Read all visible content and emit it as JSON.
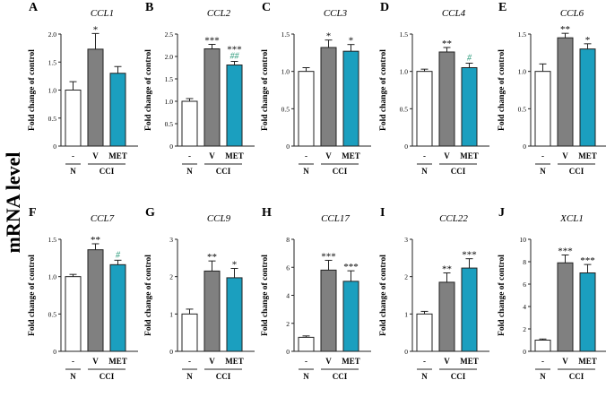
{
  "figure": {
    "y_axis_title": "mRNA level",
    "panel_ylabel": "Fold change of control",
    "colors": {
      "N": "#ffffff",
      "V": "#808080",
      "MET": "#1b9fbf",
      "edge": "#222222",
      "hash": "#2a9a7a"
    }
  },
  "chart_data": [
    {
      "type": "bar",
      "letter": "A",
      "title": "CCL1",
      "categories": [
        "-",
        "V",
        "MET"
      ],
      "groups": [
        "N",
        "CCI"
      ],
      "values": [
        1.0,
        1.73,
        1.3
      ],
      "errors": [
        0.15,
        0.28,
        0.12
      ],
      "ylim": [
        0,
        2
      ],
      "yticks": [
        "0",
        "0.5",
        "1.0",
        "1.5",
        "2.0"
      ],
      "annotations": [
        "",
        "*",
        ""
      ],
      "ylabel": "Fold change of control"
    },
    {
      "type": "bar",
      "letter": "B",
      "title": "CCL2",
      "categories": [
        "-",
        "V",
        "MET"
      ],
      "groups": [
        "N",
        "CCI"
      ],
      "values": [
        1.0,
        2.17,
        1.81
      ],
      "errors": [
        0.06,
        0.1,
        0.08
      ],
      "ylim": [
        0,
        2.5
      ],
      "yticks": [
        "0",
        "0.5",
        "1.0",
        "1.5",
        "2.0",
        "2.5"
      ],
      "annotations": [
        "",
        "***",
        "***"
      ],
      "hash": [
        "",
        "",
        "##"
      ],
      "ylabel": "Fold change of control"
    },
    {
      "type": "bar",
      "letter": "C",
      "title": "CCL3",
      "categories": [
        "-",
        "V",
        "MET"
      ],
      "groups": [
        "N",
        "CCI"
      ],
      "values": [
        1.0,
        1.32,
        1.27
      ],
      "errors": [
        0.05,
        0.1,
        0.09
      ],
      "ylim": [
        0,
        1.5
      ],
      "yticks": [
        "0",
        "0.5",
        "1.0",
        "1.5"
      ],
      "annotations": [
        "",
        "*",
        "*"
      ],
      "ylabel": "Fold change of control"
    },
    {
      "type": "bar",
      "letter": "D",
      "title": "CCL4",
      "categories": [
        "-",
        "V",
        "MET"
      ],
      "groups": [
        "N",
        "CCI"
      ],
      "values": [
        1.0,
        1.26,
        1.05
      ],
      "errors": [
        0.03,
        0.06,
        0.06
      ],
      "ylim": [
        0,
        1.5
      ],
      "yticks": [
        "0",
        "0.5",
        "1.0",
        "1.5"
      ],
      "annotations": [
        "",
        "**",
        ""
      ],
      "hash": [
        "",
        "",
        "#"
      ],
      "ylabel": "Fold change of control"
    },
    {
      "type": "bar",
      "letter": "E",
      "title": "CCL6",
      "categories": [
        "-",
        "V",
        "MET"
      ],
      "groups": [
        "N",
        "CCI"
      ],
      "values": [
        1.0,
        1.45,
        1.3
      ],
      "errors": [
        0.1,
        0.06,
        0.07
      ],
      "ylim": [
        0,
        1.5
      ],
      "yticks": [
        "0",
        "0.5",
        "1.0",
        "1.5"
      ],
      "annotations": [
        "",
        "**",
        "*"
      ],
      "ylabel": "Fold change of control"
    },
    {
      "type": "bar",
      "letter": "F",
      "title": "CCL7",
      "categories": [
        "-",
        "V",
        "MET"
      ],
      "groups": [
        "N",
        "CCI"
      ],
      "values": [
        1.0,
        1.36,
        1.16
      ],
      "errors": [
        0.03,
        0.08,
        0.06
      ],
      "ylim": [
        0,
        1.5
      ],
      "yticks": [
        "0",
        "0.5",
        "1.0",
        "1.5"
      ],
      "annotations": [
        "",
        "**",
        ""
      ],
      "hash": [
        "",
        "",
        "#"
      ],
      "ylabel": "Fold change of control"
    },
    {
      "type": "bar",
      "letter": "G",
      "title": "CCL9",
      "categories": [
        "-",
        "V",
        "MET"
      ],
      "groups": [
        "N",
        "CCI"
      ],
      "values": [
        1.0,
        2.15,
        1.97
      ],
      "errors": [
        0.13,
        0.27,
        0.25
      ],
      "ylim": [
        0,
        3
      ],
      "yticks": [
        "0",
        "1",
        "2",
        "3"
      ],
      "annotations": [
        "",
        "**",
        "*"
      ],
      "ylabel": "Fold change of control"
    },
    {
      "type": "bar",
      "letter": "H",
      "title": "CCL17",
      "categories": [
        "-",
        "V",
        "MET"
      ],
      "groups": [
        "N",
        "CCI"
      ],
      "values": [
        1.0,
        5.8,
        5.0
      ],
      "errors": [
        0.1,
        0.7,
        0.75
      ],
      "ylim": [
        0,
        8
      ],
      "yticks": [
        "0",
        "2",
        "4",
        "6",
        "8"
      ],
      "annotations": [
        "",
        "***",
        "***"
      ],
      "ylabel": "Fold change of control"
    },
    {
      "type": "bar",
      "letter": "I",
      "title": "CCL22",
      "categories": [
        "-",
        "V",
        "MET"
      ],
      "groups": [
        "N",
        "CCI"
      ],
      "values": [
        1.0,
        1.85,
        2.23
      ],
      "errors": [
        0.07,
        0.25,
        0.25
      ],
      "ylim": [
        0,
        3
      ],
      "yticks": [
        "0",
        "1",
        "2",
        "3"
      ],
      "annotations": [
        "",
        "**",
        "***"
      ],
      "ylabel": "Fold change of control"
    },
    {
      "type": "bar",
      "letter": "J",
      "title": "XCL1",
      "categories": [
        "-",
        "V",
        "MET"
      ],
      "groups": [
        "N",
        "CCI"
      ],
      "values": [
        1.0,
        7.9,
        7.0
      ],
      "errors": [
        0.1,
        0.7,
        0.75
      ],
      "ylim": [
        0,
        10
      ],
      "yticks": [
        "0",
        "2",
        "4",
        "6",
        "8",
        "10"
      ],
      "annotations": [
        "",
        "***",
        "***"
      ],
      "ylabel": "Fold change of control"
    }
  ]
}
